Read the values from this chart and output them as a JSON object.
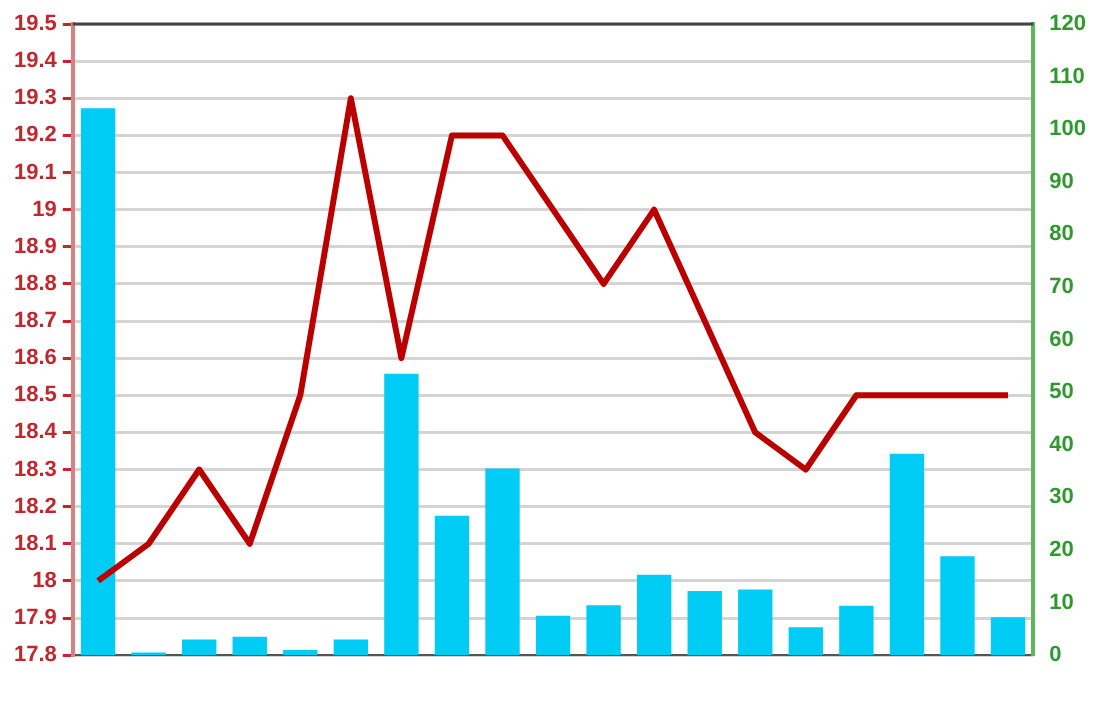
{
  "chart_data": {
    "type": "bar",
    "categories": [
      null,
      null,
      null,
      null,
      null,
      null,
      null,
      null,
      null,
      null,
      null,
      null,
      null,
      null,
      null,
      null,
      null,
      null,
      null
    ],
    "series": [
      {
        "axis": "y2",
        "color": "#00ccf5",
        "values": [
          104,
          0.5,
          3,
          3.5,
          1,
          3,
          53.5,
          26.5,
          35.5,
          7.5,
          9.5,
          15.3,
          12.2,
          12.5,
          5.3,
          9.4,
          38.3,
          18.8,
          7.2
        ]
      },
      {
        "type": "line",
        "color": "#bb0000",
        "values": [
          18.0,
          18.1,
          18.3,
          18.1,
          18.5,
          19.3,
          18.6,
          19.2,
          19.2,
          19.0,
          18.8,
          19.0,
          18.7,
          18.4,
          18.3,
          18.5,
          18.5,
          18.5,
          18.5
        ]
      }
    ],
    "ylim": [
      17.8,
      19.5
    ],
    "yticks": [
      17.8,
      17.9,
      18,
      18.1,
      18.2,
      18.3,
      18.4,
      18.5,
      18.6,
      18.7,
      18.8,
      18.9,
      19,
      19.1,
      19.2,
      19.3,
      19.4,
      19.5
    ],
    "y2lim": [
      0,
      120
    ],
    "y2ticks": [
      0,
      10,
      20,
      30,
      40,
      50,
      60,
      70,
      80,
      90,
      100,
      110,
      120
    ],
    "grid": "y",
    "legend": false,
    "marker": "none"
  }
}
